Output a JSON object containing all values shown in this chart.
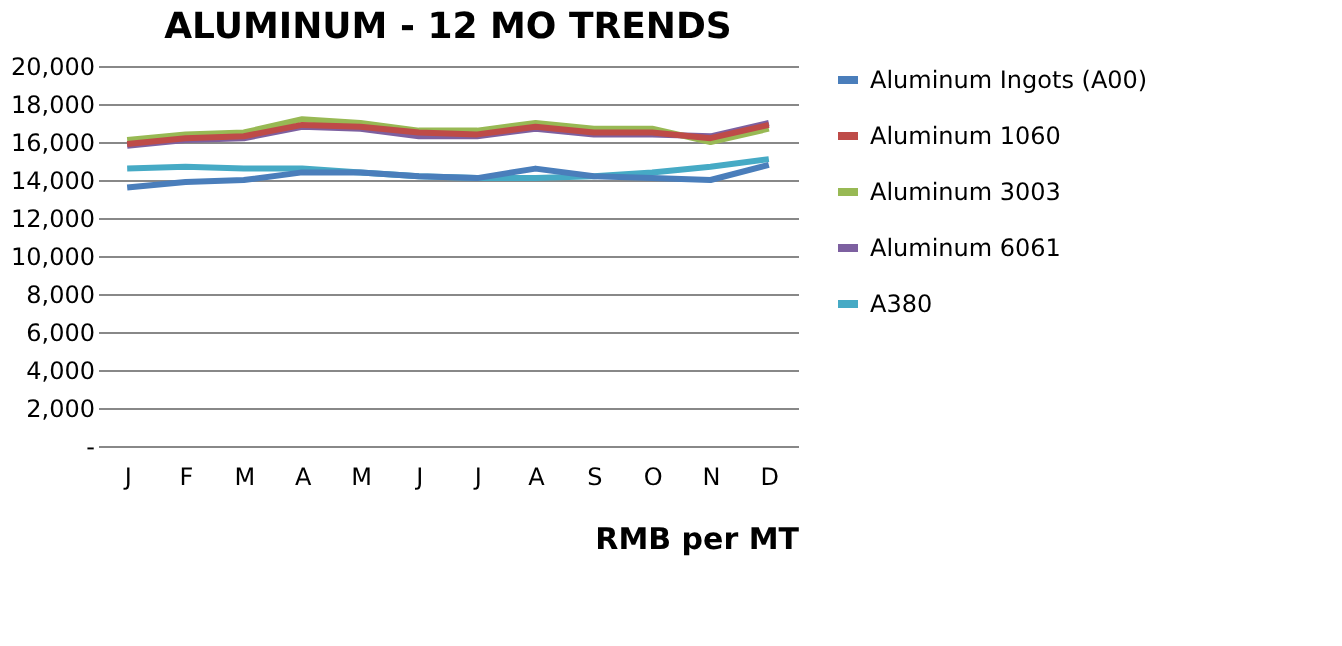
{
  "chart_data": {
    "type": "line",
    "title": "ALUMINUM - 12 MO TRENDS",
    "xlabel": "RMB per MT",
    "categories": [
      "J",
      "F",
      "M",
      "A",
      "M",
      "J",
      "J",
      "A",
      "S",
      "O",
      "N",
      "D"
    ],
    "series": [
      {
        "name": "Aluminum Ingots (A00)",
        "color": "#4a7ebb",
        "values": [
          13600,
          13900,
          14000,
          14400,
          14400,
          14200,
          14100,
          14600,
          14200,
          14100,
          14000,
          14800
        ]
      },
      {
        "name": "Aluminum 1060",
        "color": "#be4b48",
        "values": [
          15900,
          16200,
          16300,
          16900,
          16800,
          16500,
          16400,
          16800,
          16500,
          16500,
          16200,
          16900
        ]
      },
      {
        "name": "Aluminum 3003",
        "color": "#98b954",
        "values": [
          16100,
          16400,
          16500,
          17200,
          17000,
          16600,
          16600,
          17000,
          16700,
          16700,
          16000,
          16700
        ]
      },
      {
        "name": "Aluminum 6061",
        "color": "#7d60a0",
        "values": [
          15800,
          16100,
          16200,
          16800,
          16700,
          16300,
          16300,
          16700,
          16400,
          16400,
          16300,
          17000
        ]
      },
      {
        "name": "A380",
        "color": "#46aac5",
        "values": [
          14600,
          14700,
          14600,
          14600,
          14400,
          14200,
          14100,
          14100,
          14200,
          14400,
          14700,
          15100
        ]
      }
    ],
    "ylim": [
      0,
      20000
    ],
    "yticks": [
      {
        "value": 0,
        "label": "-"
      },
      {
        "value": 2000,
        "label": "2,000"
      },
      {
        "value": 4000,
        "label": "4,000"
      },
      {
        "value": 6000,
        "label": "6,000"
      },
      {
        "value": 8000,
        "label": "8,000"
      },
      {
        "value": 10000,
        "label": "10,000"
      },
      {
        "value": 12000,
        "label": "12,000"
      },
      {
        "value": 14000,
        "label": "14,000"
      },
      {
        "value": 16000,
        "label": "16,000"
      },
      {
        "value": 18000,
        "label": "18,000"
      },
      {
        "value": 20000,
        "label": "20,000"
      }
    ],
    "grid": "y",
    "legend": "right",
    "marker": "none",
    "line_style": "solid"
  }
}
